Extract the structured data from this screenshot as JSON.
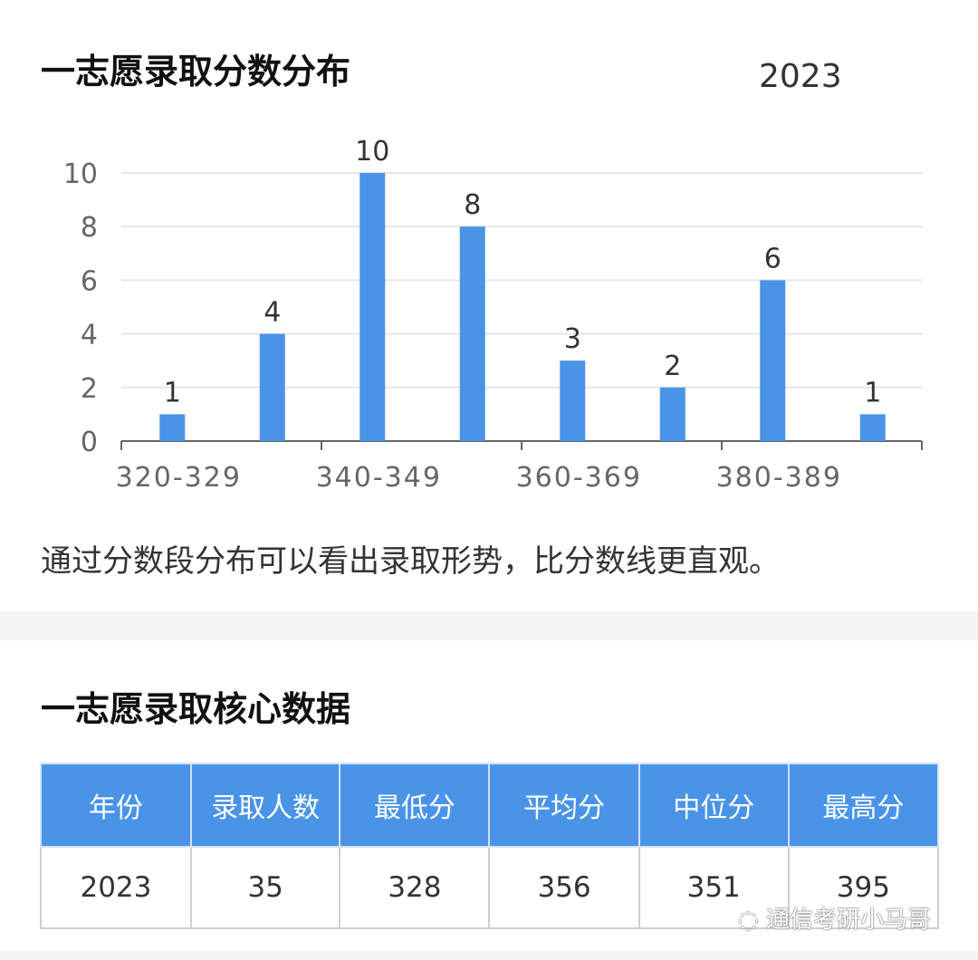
{
  "section1": {
    "title": "一志愿录取分数分布",
    "year": "2023",
    "caption": "通过分数段分布可以看出录取形势，比分数线更直观。"
  },
  "chart_data": {
    "type": "bar",
    "x_tick_labels": [
      "320-329",
      "340-349",
      "360-369",
      "380-389"
    ],
    "values": [
      1,
      4,
      10,
      8,
      3,
      2,
      6,
      1
    ],
    "y_ticks": [
      "0",
      "2",
      "4",
      "6",
      "8",
      "10"
    ],
    "ylim": [
      0,
      10
    ],
    "grid": true,
    "bar_color": "#4a94e8",
    "title": "",
    "xlabel": "",
    "ylabel": ""
  },
  "section2": {
    "title": "一志愿录取核心数据",
    "headers": [
      "年份",
      "录取人数",
      "最低分",
      "平均分",
      "中位分",
      "最高分"
    ],
    "row": [
      "2023",
      "35",
      "328",
      "356",
      "351",
      "395"
    ],
    "header_color": "#4a94e8"
  },
  "watermark": {
    "icon": "wechat-icon",
    "text": "通信考研小马哥"
  }
}
